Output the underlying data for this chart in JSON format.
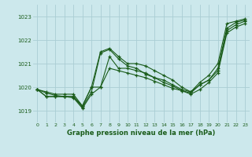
{
  "title": "Graphe pression niveau de la mer (hPa)",
  "bg_color": "#cce8ec",
  "grid_color": "#aacdd4",
  "line_color": "#1a5c1a",
  "xlim": [
    -0.5,
    23.5
  ],
  "ylim": [
    1018.5,
    1023.5
  ],
  "xticks": [
    0,
    1,
    2,
    3,
    4,
    5,
    6,
    7,
    8,
    9,
    10,
    11,
    12,
    13,
    14,
    15,
    16,
    17,
    18,
    19,
    20,
    21,
    22,
    23
  ],
  "yticks": [
    1019,
    1020,
    1021,
    1022,
    1023
  ],
  "series": [
    [
      1019.9,
      1019.8,
      1019.7,
      1019.7,
      1019.7,
      1019.2,
      1020.0,
      1021.5,
      1021.65,
      1021.3,
      1021.0,
      1021.0,
      1020.9,
      1020.7,
      1020.5,
      1020.3,
      1020.0,
      1019.8,
      1020.2,
      1020.5,
      1021.0,
      1022.7,
      1022.8,
      1022.9
    ],
    [
      1019.9,
      1019.6,
      1019.6,
      1019.6,
      1019.6,
      1019.2,
      1020.0,
      1020.0,
      1021.3,
      1020.8,
      1020.8,
      1020.7,
      1020.6,
      1020.4,
      1020.3,
      1020.1,
      1019.9,
      1019.8,
      1020.1,
      1020.3,
      1020.8,
      1022.5,
      1022.75,
      1022.85
    ],
    [
      1019.9,
      1019.6,
      1019.6,
      1019.6,
      1019.6,
      1019.15,
      1019.8,
      1021.45,
      1021.6,
      1021.2,
      1020.9,
      1020.8,
      1020.55,
      1020.4,
      1020.2,
      1020.05,
      1019.85,
      1019.75,
      1020.1,
      1020.3,
      1020.7,
      1022.4,
      1022.65,
      1022.8
    ],
    [
      1019.9,
      1019.75,
      1019.65,
      1019.6,
      1019.55,
      1019.1,
      1019.7,
      1020.0,
      1020.8,
      1020.7,
      1020.6,
      1020.5,
      1020.4,
      1020.25,
      1020.1,
      1019.95,
      1019.85,
      1019.7,
      1019.9,
      1020.2,
      1020.6,
      1022.3,
      1022.55,
      1022.7
    ]
  ]
}
